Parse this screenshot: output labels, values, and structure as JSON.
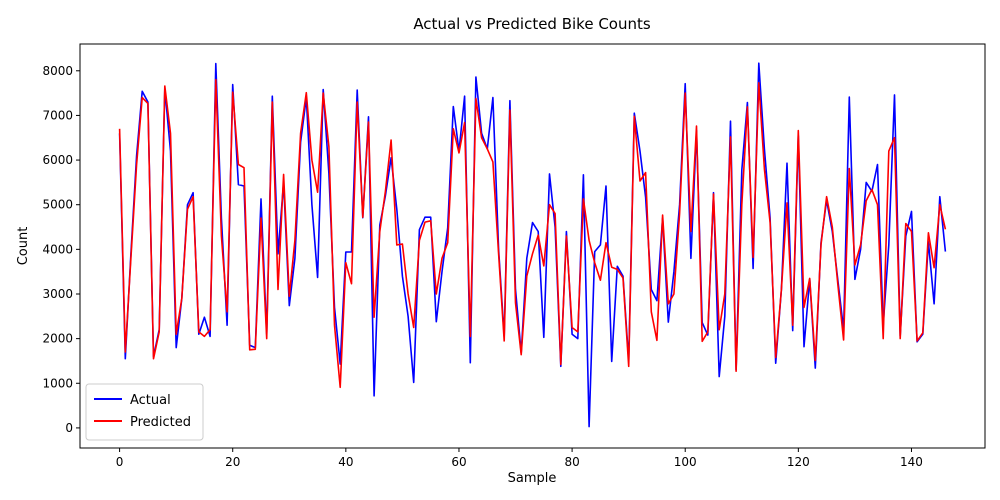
{
  "chart_data": {
    "type": "line",
    "title": "Actual vs Predicted Bike Counts",
    "xlabel": "Sample",
    "ylabel": "Count",
    "xlim": [
      -7,
      153
    ],
    "ylim": [
      -450,
      8600
    ],
    "xticks": [
      0,
      20,
      40,
      60,
      80,
      100,
      120,
      140
    ],
    "yticks": [
      0,
      1000,
      2000,
      3000,
      4000,
      5000,
      6000,
      7000,
      8000
    ],
    "grid": false,
    "legend_position": "lower-left",
    "series": [
      {
        "name": "Actual",
        "color": "#0000ff",
        "x": [
          0,
          1,
          2,
          3,
          4,
          5,
          6,
          7,
          8,
          9,
          10,
          11,
          12,
          13,
          14,
          15,
          16,
          17,
          18,
          19,
          20,
          21,
          22,
          23,
          24,
          25,
          26,
          27,
          28,
          29,
          30,
          31,
          32,
          33,
          34,
          35,
          36,
          37,
          38,
          39,
          40,
          41,
          42,
          43,
          44,
          45,
          46,
          47,
          48,
          49,
          50,
          51,
          52,
          53,
          54,
          55,
          56,
          57,
          58,
          59,
          60,
          61,
          62,
          63,
          64,
          65,
          66,
          67,
          68,
          69,
          70,
          71,
          72,
          73,
          74,
          75,
          76,
          77,
          78,
          79,
          80,
          81,
          82,
          83,
          84,
          85,
          86,
          87,
          88,
          89,
          90,
          91,
          92,
          93,
          94,
          95,
          96,
          97,
          98,
          99,
          100,
          101,
          102,
          103,
          104,
          105,
          106,
          107,
          108,
          109,
          110,
          111,
          112,
          113,
          114,
          115,
          116,
          117,
          118,
          119,
          120,
          121,
          122,
          123,
          124,
          125,
          126,
          127,
          128,
          129,
          130,
          131,
          132,
          133,
          134,
          135,
          136,
          137,
          138,
          139,
          140,
          141,
          142,
          143,
          144,
          145,
          146
        ],
        "values": [
          6600,
          1550,
          3900,
          6100,
          7540,
          7300,
          1600,
          2200,
          7600,
          6200,
          1800,
          2900,
          5000,
          5270,
          2100,
          2480,
          2050,
          8160,
          4700,
          2300,
          7690,
          5450,
          5420,
          1850,
          1800,
          5130,
          2100,
          7430,
          3900,
          5500,
          2740,
          3800,
          6400,
          7400,
          5000,
          3370,
          7580,
          5700,
          2700,
          1430,
          3940,
          3940,
          7570,
          4710,
          6970,
          720,
          4540,
          5200,
          6050,
          4900,
          3400,
          2500,
          1020,
          4440,
          4720,
          4720,
          2380,
          3500,
          4480,
          7200,
          6200,
          7430,
          1460,
          7860,
          6600,
          6250,
          7400,
          4000,
          2050,
          7330,
          3100,
          1680,
          3800,
          4600,
          4400,
          2030,
          5690,
          4500,
          1380,
          4400,
          2100,
          2000,
          5670,
          30,
          3950,
          4100,
          5420,
          1490,
          3620,
          3400,
          1500,
          7050,
          6200,
          5170,
          3100,
          2850,
          4700,
          2370,
          3500,
          5000,
          7710,
          3800,
          6660,
          2360,
          2080,
          5270,
          1150,
          2500,
          6870,
          1300,
          5770,
          7290,
          3570,
          8170,
          6250,
          4700,
          1450,
          3100,
          5930,
          2180,
          6550,
          1820,
          3340,
          1340,
          4150,
          5100,
          4400,
          3300,
          2200,
          7410,
          3330,
          4000,
          5500,
          5300,
          5900,
          2300,
          4100,
          7460,
          2060,
          4300,
          4850,
          1930,
          2100,
          4170,
          2780,
          5180,
          3950
        ]
      },
      {
        "name": "Predicted",
        "color": "#ff0000",
        "x": [
          0,
          1,
          2,
          3,
          4,
          5,
          6,
          7,
          8,
          9,
          10,
          11,
          12,
          13,
          14,
          15,
          16,
          17,
          18,
          19,
          20,
          21,
          22,
          23,
          24,
          25,
          26,
          27,
          28,
          29,
          30,
          31,
          32,
          33,
          34,
          35,
          36,
          37,
          38,
          39,
          40,
          41,
          42,
          43,
          44,
          45,
          46,
          47,
          48,
          49,
          50,
          51,
          52,
          53,
          54,
          55,
          56,
          57,
          58,
          59,
          60,
          61,
          62,
          63,
          64,
          65,
          66,
          67,
          68,
          69,
          70,
          71,
          72,
          73,
          74,
          75,
          76,
          77,
          78,
          79,
          80,
          81,
          82,
          83,
          84,
          85,
          86,
          87,
          88,
          89,
          90,
          91,
          92,
          93,
          94,
          95,
          96,
          97,
          98,
          99,
          100,
          101,
          102,
          103,
          104,
          105,
          106,
          107,
          108,
          109,
          110,
          111,
          112,
          113,
          114,
          115,
          116,
          117,
          118,
          119,
          120,
          121,
          122,
          123,
          124,
          125,
          126,
          127,
          128,
          129,
          130,
          131,
          132,
          133,
          134,
          135,
          136,
          137,
          138,
          139,
          140,
          141,
          142,
          143,
          144,
          145,
          146
        ],
        "values": [
          6700,
          1700,
          3800,
          5900,
          7400,
          7270,
          1550,
          2150,
          7660,
          6600,
          2100,
          2900,
          4900,
          5180,
          2150,
          2050,
          2200,
          7800,
          4300,
          2600,
          7520,
          5900,
          5830,
          1750,
          1760,
          4700,
          2000,
          7300,
          3100,
          5680,
          2950,
          4200,
          6600,
          7510,
          6000,
          5280,
          7500,
          6300,
          2300,
          910,
          3700,
          3230,
          7300,
          4720,
          6850,
          2480,
          4400,
          5300,
          6450,
          4100,
          4120,
          3000,
          2250,
          4200,
          4610,
          4640,
          3000,
          3800,
          4150,
          6700,
          6160,
          6840,
          2050,
          7380,
          6500,
          6250,
          5960,
          3900,
          1950,
          7120,
          2800,
          1640,
          3400,
          3900,
          4320,
          3630,
          5000,
          4800,
          1420,
          4300,
          2250,
          2150,
          5130,
          4200,
          3700,
          3310,
          4150,
          3600,
          3550,
          3360,
          1380,
          6980,
          5530,
          5720,
          2600,
          1960,
          4770,
          2780,
          3000,
          4800,
          7500,
          4400,
          6760,
          1940,
          2150,
          5240,
          2200,
          3000,
          6520,
          1270,
          5000,
          7190,
          3820,
          7730,
          5800,
          4600,
          1580,
          3100,
          5040,
          2300,
          6660,
          2700,
          3350,
          1510,
          4100,
          5180,
          4500,
          3200,
          1970,
          5810,
          3650,
          4100,
          5090,
          5340,
          5000,
          2000,
          6200,
          6500,
          2000,
          4580,
          4400,
          1950,
          2130,
          4370,
          3590,
          5000,
          4450
        ]
      }
    ]
  }
}
